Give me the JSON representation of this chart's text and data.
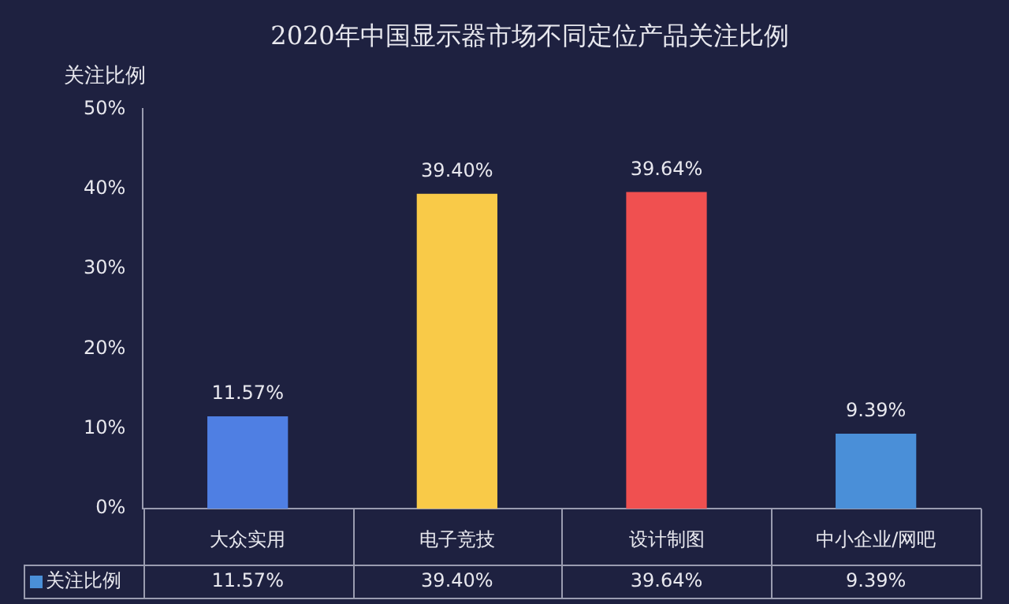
{
  "chart_data": {
    "type": "bar",
    "title": "2020年中国显示器市场不同定位产品关注比例",
    "ylabel": "关注比例",
    "categories": [
      "大众实用",
      "电子竞技",
      "设计制图",
      "中小企业/网吧"
    ],
    "series": [
      {
        "name": "关注比例",
        "color": "#4a8fd8",
        "colors": [
          "#4f7fe3",
          "#f9ca48",
          "#f05050",
          "#4a8fd8"
        ],
        "values": [
          11.57,
          39.4,
          39.64,
          9.39
        ],
        "value_labels": [
          "11.57%",
          "39.40%",
          "39.64%",
          "9.39%"
        ]
      }
    ],
    "ylim": [
      0,
      50
    ],
    "yticks": [
      {
        "value": 0,
        "label": "0%"
      },
      {
        "value": 10,
        "label": "10%"
      },
      {
        "value": 20,
        "label": "20%"
      },
      {
        "value": 30,
        "label": "30%"
      },
      {
        "value": 40,
        "label": "40%"
      },
      {
        "value": 50,
        "label": "50%"
      }
    ],
    "grid": false,
    "legend": "bottom left"
  }
}
